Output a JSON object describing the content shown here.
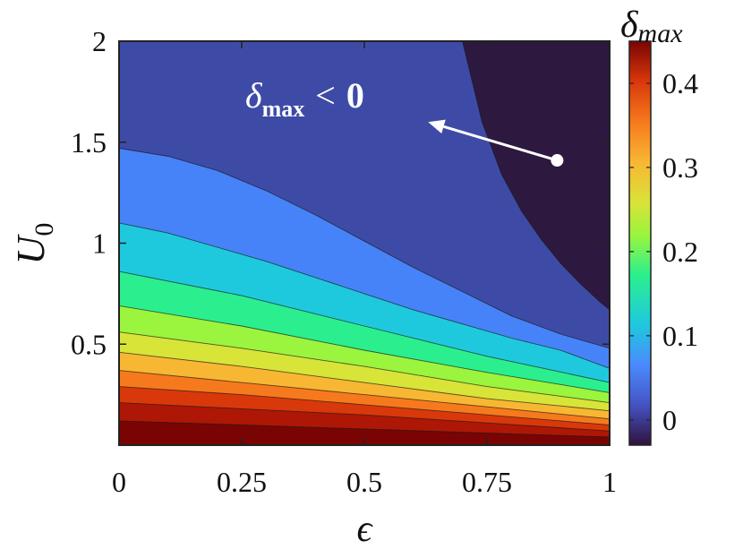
{
  "chart_data": {
    "type": "heatmap",
    "subtype": "filled-contour",
    "xlabel": "ϵ",
    "ylabel": "U",
    "ylabel_subscript": "0",
    "xlim": [
      0,
      1
    ],
    "ylim": [
      0,
      2
    ],
    "xticks": [
      0,
      0.25,
      0.5,
      0.75,
      1
    ],
    "xtick_labels": [
      "0",
      "0.25",
      "0.5",
      "0.75",
      "1"
    ],
    "yticks": [
      0.5,
      1,
      1.5,
      2
    ],
    "ytick_labels": [
      "0.5",
      "1",
      "1.5",
      "2"
    ],
    "colorbar": {
      "label": "δ",
      "label_subscript": "max",
      "range": [
        -0.03,
        0.45
      ],
      "ticks": [
        0,
        0.1,
        0.2,
        0.3,
        0.4
      ],
      "tick_labels": [
        "0",
        "0.1",
        "0.2",
        "0.3",
        "0.4"
      ],
      "colormap": "turbo"
    },
    "contours": [
      {
        "level": 0.0,
        "x": [
          0.7,
          0.74,
          0.78,
          0.82,
          0.86,
          0.9,
          0.94,
          0.98,
          1.0
        ],
        "y": [
          2.0,
          1.6,
          1.34,
          1.16,
          1.02,
          0.9,
          0.8,
          0.71,
          0.67
        ]
      },
      {
        "level": 0.04,
        "x": [
          0,
          0.1,
          0.2,
          0.3,
          0.4,
          0.5,
          0.6,
          0.7,
          0.8,
          0.9,
          1.0
        ],
        "y": [
          1.47,
          1.43,
          1.36,
          1.26,
          1.14,
          1.01,
          0.88,
          0.76,
          0.64,
          0.55,
          0.48
        ]
      },
      {
        "level": 0.08,
        "x": [
          0,
          0.1,
          0.2,
          0.3,
          0.4,
          0.5,
          0.6,
          0.7,
          0.8,
          0.9,
          1.0
        ],
        "y": [
          1.1,
          1.05,
          0.98,
          0.91,
          0.83,
          0.75,
          0.67,
          0.6,
          0.53,
          0.47,
          0.38
        ]
      },
      {
        "level": 0.12,
        "x": [
          0,
          0.25,
          0.5,
          0.75,
          1.0
        ],
        "y": [
          0.86,
          0.74,
          0.59,
          0.44,
          0.31
        ]
      },
      {
        "level": 0.16,
        "x": [
          0,
          0.25,
          0.5,
          0.75,
          1.0
        ],
        "y": [
          0.69,
          0.59,
          0.47,
          0.36,
          0.26
        ]
      },
      {
        "level": 0.2,
        "x": [
          0,
          0.25,
          0.5,
          0.75,
          1.0
        ],
        "y": [
          0.56,
          0.48,
          0.39,
          0.29,
          0.21
        ]
      },
      {
        "level": 0.24,
        "x": [
          0,
          0.25,
          0.5,
          0.75,
          1.0
        ],
        "y": [
          0.46,
          0.39,
          0.31,
          0.23,
          0.17
        ]
      },
      {
        "level": 0.28,
        "x": [
          0,
          0.25,
          0.5,
          0.75,
          1.0
        ],
        "y": [
          0.37,
          0.31,
          0.25,
          0.19,
          0.13
        ]
      },
      {
        "level": 0.32,
        "x": [
          0,
          0.25,
          0.5,
          0.75,
          1.0
        ],
        "y": [
          0.29,
          0.25,
          0.2,
          0.15,
          0.1
        ]
      },
      {
        "level": 0.36,
        "x": [
          0,
          0.25,
          0.5,
          0.75,
          1.0
        ],
        "y": [
          0.21,
          0.18,
          0.15,
          0.11,
          0.07
        ]
      },
      {
        "level": 0.4,
        "x": [
          0,
          0.25,
          0.5,
          0.75,
          1.0
        ],
        "y": [
          0.12,
          0.1,
          0.08,
          0.06,
          0.04
        ]
      }
    ],
    "region_colors": [
      "#2d1840",
      "#3e4ba6",
      "#4683f8",
      "#1fc9dd",
      "#2bef8f",
      "#9bf43e",
      "#d8e438",
      "#f8b733",
      "#f67a1d",
      "#d9380b",
      "#ae1705",
      "#7a0403"
    ],
    "annotation": {
      "label": "δ",
      "label_subscript": "max",
      "label_relation": "<",
      "label_value": "0",
      "color": "#ffffff",
      "arrow_from": [
        0.893,
        1.41
      ],
      "arrow_to": [
        0.63,
        1.6
      ]
    }
  }
}
